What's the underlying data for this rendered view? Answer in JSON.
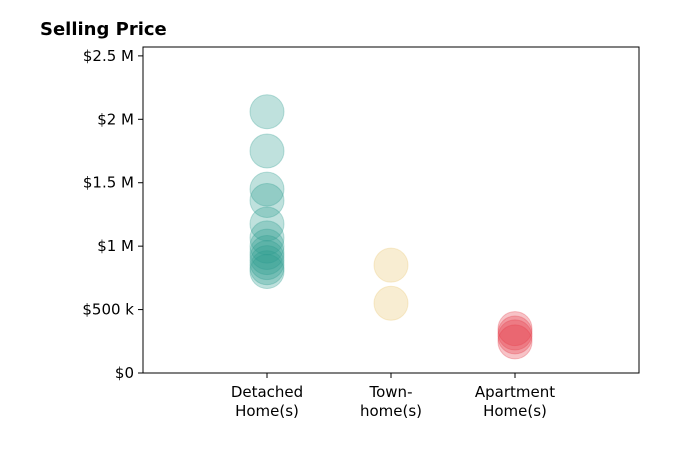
{
  "chart_data": {
    "type": "strip",
    "title": "Selling Price",
    "categories": [
      "Detached\nHome(s)",
      "Town-\nhome(s)",
      "Apartment\nHome(s)"
    ],
    "values": [
      [
        2060000,
        1750000,
        1450000,
        1360000,
        1175000,
        1065000,
        1000000,
        950000,
        910000,
        870000,
        830000,
        800000
      ],
      [
        850000,
        550000
      ],
      [
        350000,
        315000,
        285000,
        245000
      ]
    ],
    "colors": [
      "#2a9d8f",
      "#e9c46a",
      "#e63946"
    ],
    "ylim": [
      0,
      2570000
    ],
    "yticks": [
      {
        "value": 0,
        "label": "$0"
      },
      {
        "value": 500000,
        "label": "$500 k"
      },
      {
        "value": 1000000,
        "label": "$1 M"
      },
      {
        "value": 1500000,
        "label": "$1.5 M"
      },
      {
        "value": 2000000,
        "label": "$2 M"
      },
      {
        "value": 2500000,
        "label": "$2.5 M"
      }
    ],
    "grid": false
  }
}
